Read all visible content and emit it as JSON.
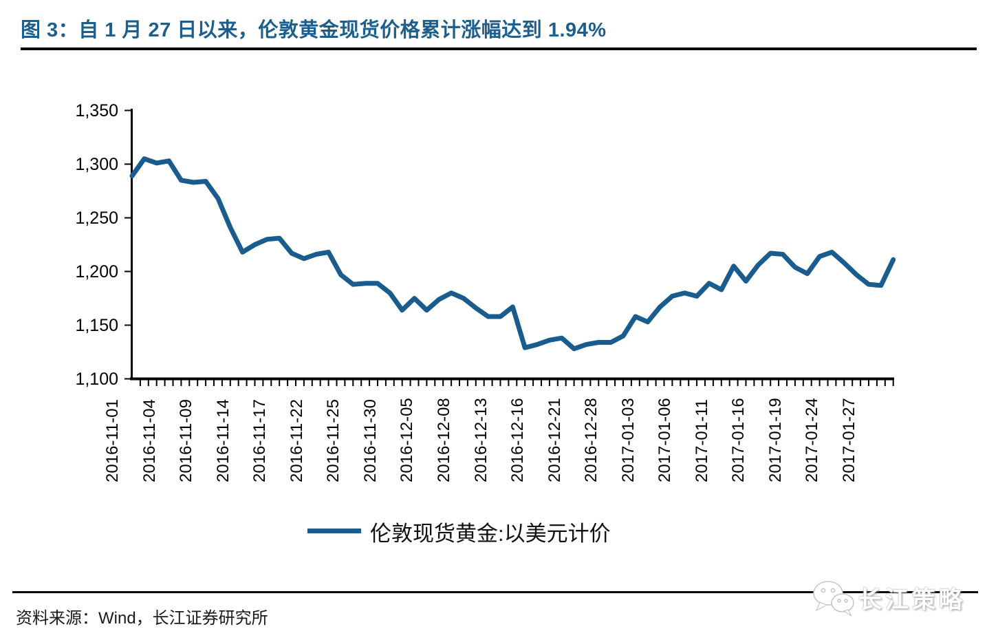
{
  "figure": {
    "title": "图 3：自 1 月 27 日以来，伦敦黄金现货价格累计涨幅达到 1.94%"
  },
  "legend": {
    "label": "伦敦现货黄金:以美元计价"
  },
  "source": {
    "text": "资料来源：Wind，长江证券研究所"
  },
  "watermark": {
    "text": "长江策略",
    "icon": "wechat-icon"
  },
  "colors": {
    "accent_blue": "#1B5C8E",
    "title_blue": "#1C5E8E",
    "axis_black": "#000000"
  },
  "chart_data": {
    "type": "line",
    "grid": false,
    "legend_position": "bottom",
    "line_color": "#1B5C8E",
    "ylim": [
      1100,
      1350
    ],
    "y_ticks": [
      1100,
      1150,
      1200,
      1250,
      1300,
      1350
    ],
    "y_tick_labels": [
      "1,100",
      "1,150",
      "1,200",
      "1,250",
      "1,300",
      "1,350"
    ],
    "x_tick_labels": [
      "2016-11-01",
      "2016-11-04",
      "2016-11-09",
      "2016-11-14",
      "2016-11-17",
      "2016-11-22",
      "2016-11-25",
      "2016-11-30",
      "2016-12-05",
      "2016-12-08",
      "2016-12-13",
      "2016-12-16",
      "2016-12-21",
      "2016-12-28",
      "2017-01-03",
      "2017-01-06",
      "2017-01-11",
      "2017-01-16",
      "2017-01-19",
      "2017-01-24",
      "2017-01-27"
    ],
    "series": [
      {
        "name": "伦敦现货黄金:以美元计价",
        "x": [
          "2016-11-01",
          "2016-11-02",
          "2016-11-03",
          "2016-11-04",
          "2016-11-07",
          "2016-11-08",
          "2016-11-09",
          "2016-11-10",
          "2016-11-11",
          "2016-11-14",
          "2016-11-15",
          "2016-11-16",
          "2016-11-17",
          "2016-11-18",
          "2016-11-21",
          "2016-11-22",
          "2016-11-23",
          "2016-11-24",
          "2016-11-25",
          "2016-11-28",
          "2016-11-29",
          "2016-11-30",
          "2016-12-01",
          "2016-12-02",
          "2016-12-05",
          "2016-12-06",
          "2016-12-07",
          "2016-12-08",
          "2016-12-09",
          "2016-12-12",
          "2016-12-13",
          "2016-12-14",
          "2016-12-15",
          "2016-12-16",
          "2016-12-19",
          "2016-12-20",
          "2016-12-21",
          "2016-12-22",
          "2016-12-23",
          "2016-12-28",
          "2016-12-29",
          "2016-12-30",
          "2017-01-03",
          "2017-01-04",
          "2017-01-05",
          "2017-01-06",
          "2017-01-09",
          "2017-01-10",
          "2017-01-11",
          "2017-01-12",
          "2017-01-13",
          "2017-01-16",
          "2017-01-17",
          "2017-01-18",
          "2017-01-19",
          "2017-01-20",
          "2017-01-23",
          "2017-01-24",
          "2017-01-25",
          "2017-01-26",
          "2017-01-27",
          "2017-01-30",
          "2017-01-31"
        ],
        "values": [
          1289,
          1305,
          1301,
          1303,
          1285,
          1283,
          1284,
          1268,
          1241,
          1218,
          1225,
          1230,
          1231,
          1217,
          1212,
          1216,
          1218,
          1197,
          1188,
          1189,
          1189,
          1180,
          1164,
          1175,
          1164,
          1174,
          1180,
          1175,
          1166,
          1158,
          1158,
          1167,
          1129,
          1132,
          1136,
          1138,
          1128,
          1132,
          1134,
          1134,
          1140,
          1158,
          1153,
          1167,
          1177,
          1180,
          1177,
          1189,
          1183,
          1205,
          1191,
          1206,
          1217,
          1216,
          1204,
          1198,
          1214,
          1218,
          1208,
          1197,
          1188,
          1187,
          1211
        ]
      }
    ]
  }
}
